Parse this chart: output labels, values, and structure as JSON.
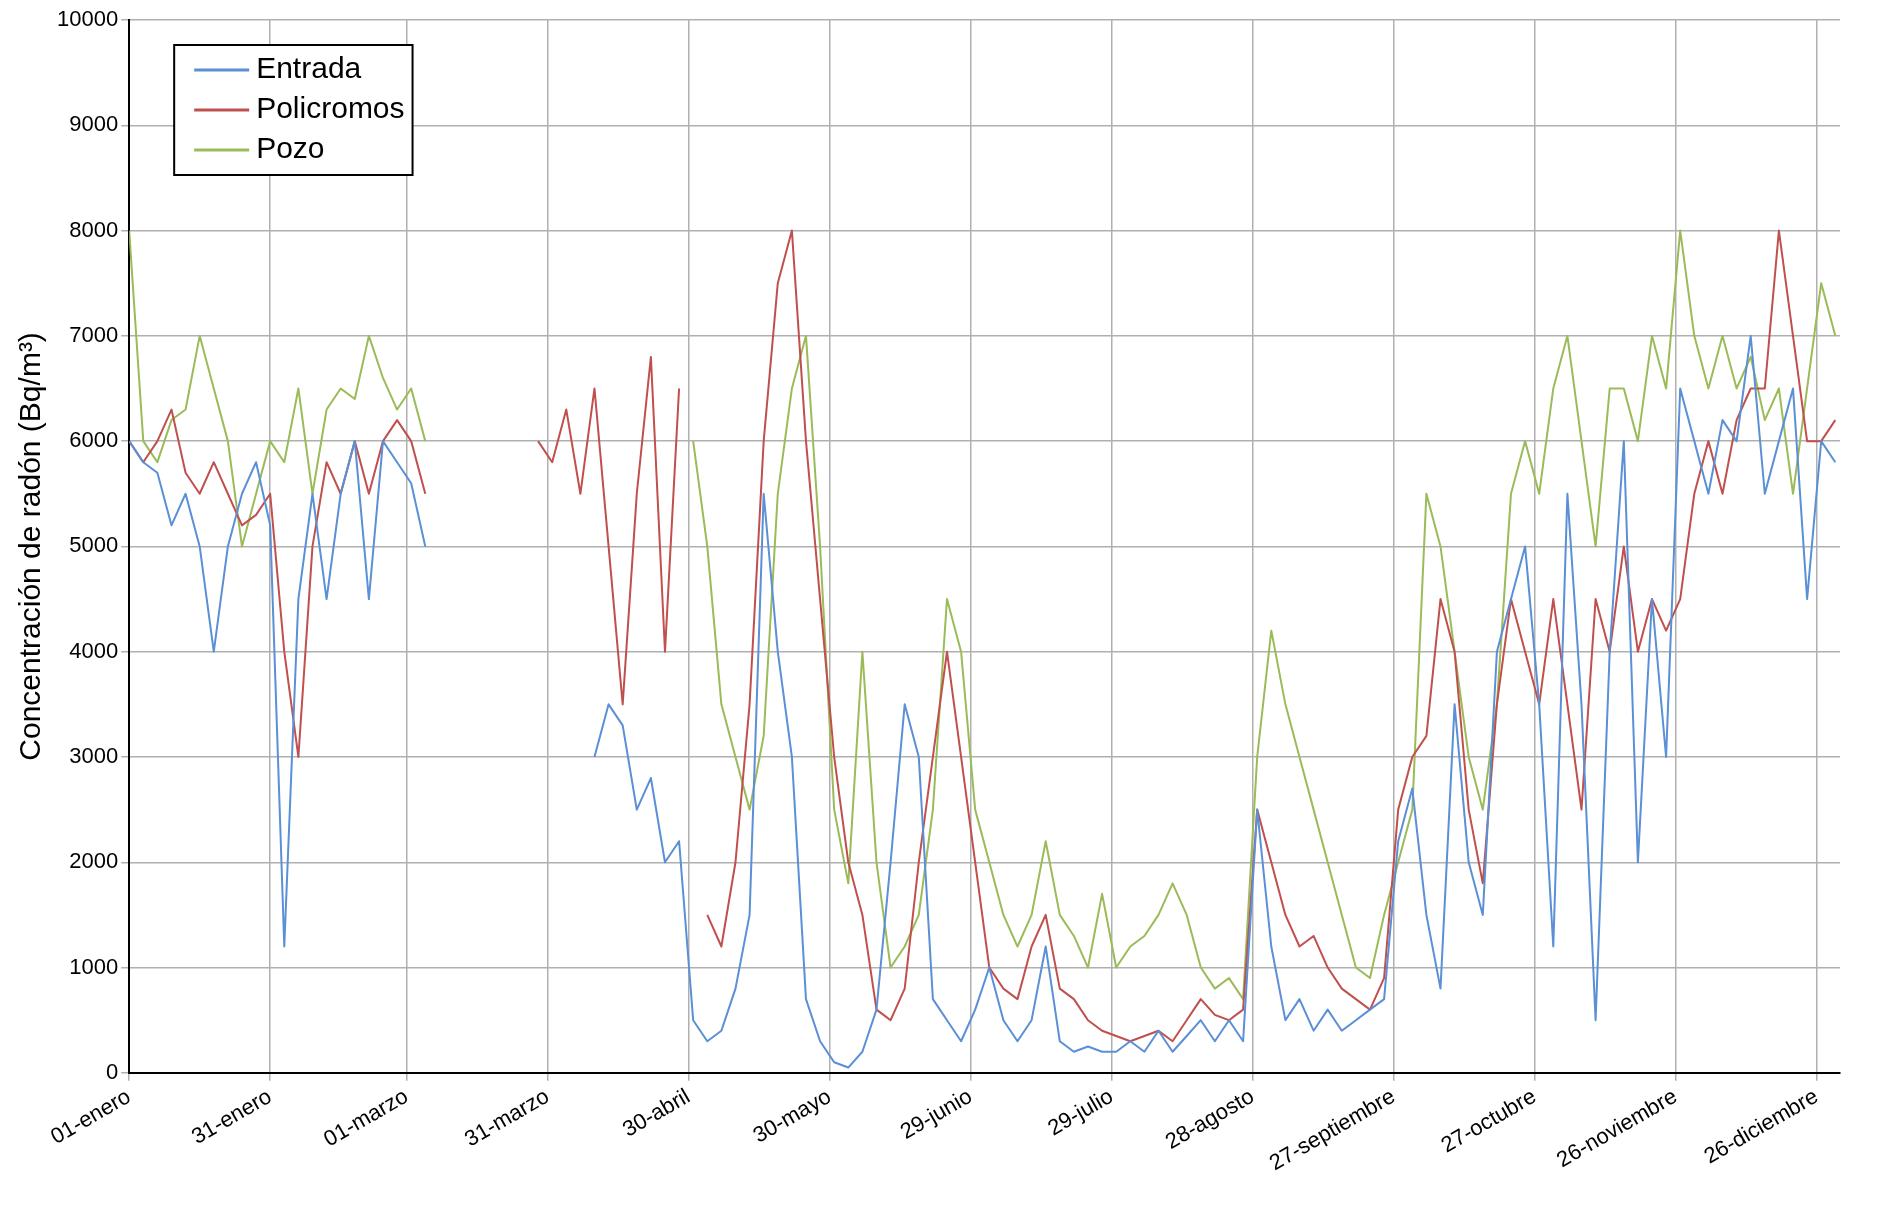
{
  "chart_data": {
    "type": "line",
    "ylabel": "Concentración de radón (Bq/m³)",
    "x": [
      "--01-01",
      "--01-04",
      "--01-07",
      "--01-10",
      "--01-13",
      "--01-16",
      "--01-19",
      "--01-22",
      "--01-25",
      "--01-28",
      "--01-31",
      "--02-03",
      "--02-06",
      "--02-09",
      "--02-12",
      "--02-15",
      "--02-18",
      "--02-21",
      "--02-24",
      "--02-27",
      "--03-02",
      "--03-05",
      "--03-08",
      "--03-11",
      "--03-14",
      "--03-17",
      "--03-20",
      "--03-23",
      "--03-26",
      "--03-29",
      "--04-01",
      "--04-04",
      "--04-07",
      "--04-10",
      "--04-13",
      "--04-16",
      "--04-19",
      "--04-22",
      "--04-25",
      "--04-28",
      "--05-01",
      "--05-04",
      "--05-07",
      "--05-10",
      "--05-13",
      "--05-16",
      "--05-19",
      "--05-22",
      "--05-25",
      "--05-28",
      "--05-31",
      "--06-03",
      "--06-06",
      "--06-09",
      "--06-12",
      "--06-15",
      "--06-18",
      "--06-21",
      "--06-24",
      "--06-27",
      "--06-30",
      "--07-03",
      "--07-06",
      "--07-09",
      "--07-12",
      "--07-15",
      "--07-18",
      "--07-21",
      "--07-24",
      "--07-27",
      "--07-30",
      "--08-02",
      "--08-05",
      "--08-08",
      "--08-11",
      "--08-14",
      "--08-17",
      "--08-20",
      "--08-23",
      "--08-26",
      "--08-29",
      "--09-01",
      "--09-04",
      "--09-07",
      "--09-10",
      "--09-13",
      "--09-16",
      "--09-19",
      "--09-22",
      "--09-25",
      "--09-28",
      "--10-01",
      "--10-04",
      "--10-07",
      "--10-10",
      "--10-13",
      "--10-16",
      "--10-19",
      "--10-22",
      "--10-25",
      "--10-28",
      "--10-31",
      "--11-03",
      "--11-06",
      "--11-09",
      "--11-12",
      "--11-15",
      "--11-18",
      "--11-21",
      "--11-24",
      "--11-27",
      "--11-30",
      "--12-03",
      "--12-06",
      "--12-09",
      "--12-12",
      "--12-15",
      "--12-18",
      "--12-21",
      "--12-24",
      "--12-27",
      "--12-30"
    ],
    "series": [
      {
        "name": "Entrada",
        "color": "#5b8fd6",
        "values": [
          6000,
          5800,
          5700,
          5200,
          5500,
          5000,
          4000,
          5000,
          5500,
          5800,
          5200,
          1200,
          4500,
          5500,
          4500,
          5500,
          6000,
          4500,
          6000,
          5800,
          5600,
          5000,
          null,
          null,
          null,
          null,
          null,
          null,
          null,
          null,
          null,
          null,
          null,
          3000,
          3500,
          3300,
          2500,
          2800,
          2000,
          2200,
          500,
          300,
          400,
          800,
          1500,
          5500,
          4000,
          3000,
          700,
          300,
          100,
          50,
          200,
          600,
          2000,
          3500,
          3000,
          700,
          500,
          300,
          600,
          1000,
          500,
          300,
          500,
          1200,
          300,
          200,
          250,
          200,
          200,
          300,
          200,
          400,
          200,
          350,
          500,
          300,
          500,
          300,
          2500,
          1200,
          500,
          700,
          400,
          600,
          400,
          500,
          600,
          700,
          2200,
          2700,
          1500,
          800,
          3500,
          2000,
          1500,
          4000,
          4500,
          5000,
          3500,
          1200,
          5500,
          3500,
          500,
          4000,
          6000,
          2000,
          4500,
          3000,
          6500,
          6000,
          5500,
          6200,
          6000,
          7000,
          5500,
          6000,
          6500,
          4500,
          6000,
          5800
        ]
      },
      {
        "name": "Policromos",
        "color": "#c0504d",
        "values": [
          6000,
          5800,
          6000,
          6300,
          5700,
          5500,
          5800,
          5500,
          5200,
          5300,
          5500,
          4000,
          3000,
          5000,
          5800,
          5500,
          6000,
          5500,
          6000,
          6200,
          6000,
          5500,
          null,
          null,
          null,
          null,
          null,
          null,
          null,
          6000,
          5800,
          6300,
          5500,
          6500,
          5000,
          3500,
          5500,
          6800,
          4000,
          6500,
          null,
          1500,
          1200,
          2000,
          3500,
          6000,
          7500,
          8000,
          6000,
          4500,
          3000,
          2000,
          1500,
          600,
          500,
          800,
          2000,
          3000,
          4000,
          3000,
          2000,
          1000,
          800,
          700,
          1200,
          1500,
          800,
          700,
          500,
          400,
          350,
          300,
          350,
          400,
          300,
          500,
          700,
          550,
          500,
          600,
          2500,
          2000,
          1500,
          1200,
          1300,
          1000,
          800,
          700,
          600,
          900,
          2500,
          3000,
          3200,
          4500,
          4000,
          2500,
          1800,
          3500,
          4500,
          4000,
          3500,
          4500,
          3500,
          2500,
          4500,
          4000,
          5000,
          4000,
          4500,
          4200,
          4500,
          5500,
          6000,
          5500,
          6200,
          6500,
          6500,
          8000,
          7000,
          6000,
          6000,
          6200
        ]
      },
      {
        "name": "Pozo",
        "color": "#9bbb59",
        "values": [
          8000,
          6000,
          5800,
          6200,
          6300,
          7000,
          6500,
          6000,
          5000,
          5500,
          6000,
          5800,
          6500,
          5500,
          6300,
          6500,
          6400,
          7000,
          6600,
          6300,
          6500,
          6000,
          null,
          null,
          null,
          null,
          null,
          null,
          null,
          null,
          null,
          null,
          null,
          null,
          null,
          null,
          null,
          null,
          null,
          null,
          6000,
          5000,
          3500,
          3000,
          2500,
          3200,
          5500,
          6500,
          7000,
          5000,
          2500,
          1800,
          4000,
          2000,
          1000,
          1200,
          1500,
          2500,
          4500,
          4000,
          2500,
          2000,
          1500,
          1200,
          1500,
          2200,
          1500,
          1300,
          1000,
          1700,
          1000,
          1200,
          1300,
          1500,
          1800,
          1500,
          1000,
          800,
          900,
          700,
          3000,
          4200,
          3500,
          3000,
          2500,
          2000,
          1500,
          1000,
          900,
          1500,
          2000,
          2500,
          5500,
          5000,
          4000,
          3000,
          2500,
          3500,
          5500,
          6000,
          5500,
          6500,
          7000,
          6000,
          5000,
          6500,
          6500,
          6000,
          7000,
          6500,
          8000,
          7000,
          6500,
          7000,
          6500,
          6800,
          6200,
          6500,
          5500,
          6500,
          7500,
          7000
        ]
      }
    ],
    "xlim": [
      "--01-01",
      "--12-31"
    ],
    "xticks": [
      {
        "value": "--01-01",
        "label": "01-enero"
      },
      {
        "value": "--01-31",
        "label": "31-enero"
      },
      {
        "value": "--03-01",
        "label": "01-marzo"
      },
      {
        "value": "--03-31",
        "label": "31-marzo"
      },
      {
        "value": "--04-30",
        "label": "30-abril"
      },
      {
        "value": "--05-30",
        "label": "30-mayo"
      },
      {
        "value": "--06-29",
        "label": "29-junio"
      },
      {
        "value": "--07-29",
        "label": "29-julio"
      },
      {
        "value": "--08-28",
        "label": "28-agosto"
      },
      {
        "value": "--09-27",
        "label": "27-septiembre"
      },
      {
        "value": "--10-27",
        "label": "27-octubre"
      },
      {
        "value": "--11-26",
        "label": "26-noviembre"
      },
      {
        "value": "--12-26",
        "label": "26-diciembre"
      }
    ],
    "ylim": [
      0,
      10000
    ],
    "yticks": [
      0,
      1000,
      2000,
      3000,
      4000,
      5000,
      6000,
      7000,
      8000,
      9000,
      10000
    ],
    "grid": true,
    "legend": "top left",
    "marker": "none",
    "line_style": "solid"
  }
}
